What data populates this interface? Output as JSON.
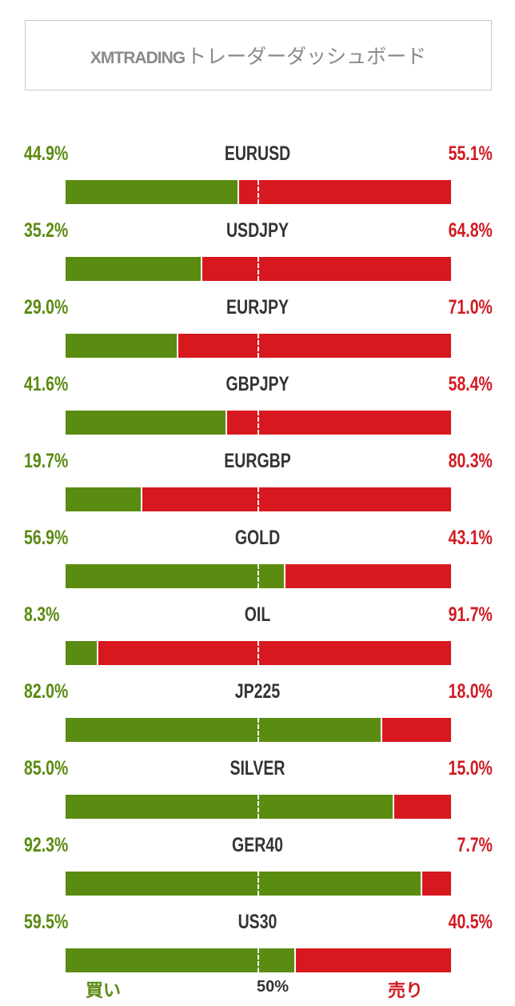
{
  "header": {
    "brand": "XMTRADING",
    "title_suffix": "トレーダーダッシュボード"
  },
  "colors": {
    "buy": "#5a8c12",
    "sell": "#d8181f",
    "buy_text": "#5a8a10",
    "sell_text": "#d01b23"
  },
  "chart_data": {
    "type": "bar",
    "categories": [
      "EURUSD",
      "USDJPY",
      "EURJPY",
      "GBPJPY",
      "EURGBP",
      "GOLD",
      "OIL",
      "JP225",
      "SILVER",
      "GER40",
      "US30"
    ],
    "series": [
      {
        "name": "買い",
        "values": [
          44.9,
          35.2,
          29.0,
          41.6,
          19.7,
          56.9,
          8.3,
          82.0,
          85.0,
          92.3,
          59.5
        ],
        "labels": [
          "44.9%",
          "35.2%",
          "29.0%",
          "41.6%",
          "19.7%",
          "56.9%",
          "8.3%",
          "82.0%",
          "85.0%",
          "92.3%",
          "59.5%"
        ]
      },
      {
        "name": "売り",
        "values": [
          55.1,
          64.8,
          71.0,
          58.4,
          80.3,
          43.1,
          91.7,
          18.0,
          15.0,
          7.7,
          40.5
        ],
        "labels": [
          "55.1%",
          "64.8%",
          "71.0%",
          "58.4%",
          "80.3%",
          "43.1%",
          "91.7%",
          "18.0%",
          "15.0%",
          "7.7%",
          "40.5%"
        ]
      }
    ],
    "stacked": true,
    "xlim": [
      0,
      100
    ],
    "midline_label": "50%"
  },
  "footer": {
    "buy_label": "買い",
    "mid_label": "50%",
    "sell_label": "売り"
  }
}
